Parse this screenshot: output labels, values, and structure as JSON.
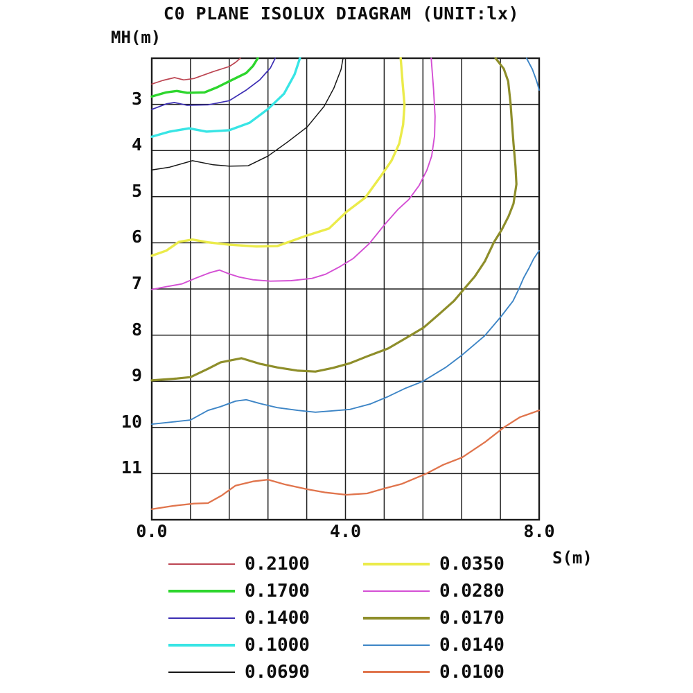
{
  "title": "C0 PLANE ISOLUX DIAGRAM (UNIT:lx)",
  "chart_data": {
    "type": "line",
    "subtype": "isolux-contour-diagram",
    "grid": true,
    "legend_position": "bottom-two-columns",
    "x_axis": {
      "label": "S(m)",
      "min": 0,
      "max": 8,
      "grid_step": 0.8,
      "ticks": [
        {
          "value": 0,
          "label": "0.0"
        },
        {
          "value": 4,
          "label": "4.0"
        },
        {
          "value": 8,
          "label": "8.0"
        }
      ]
    },
    "y_axis": {
      "label": "MH(m)",
      "min": 2,
      "max": 12,
      "grid_step": 1,
      "direction": "down",
      "ticks": [
        {
          "value": 3,
          "label": "3"
        },
        {
          "value": 4,
          "label": "4"
        },
        {
          "value": 5,
          "label": "5"
        },
        {
          "value": 6,
          "label": "6"
        },
        {
          "value": 7,
          "label": "7"
        },
        {
          "value": 8,
          "label": "8"
        },
        {
          "value": 9,
          "label": "9"
        },
        {
          "value": 10,
          "label": "10"
        },
        {
          "value": 11,
          "label": "11"
        }
      ]
    },
    "series": [
      {
        "label": "0.2100",
        "level": 0.21,
        "color": "#bc4552",
        "width": 1.7,
        "legend_thickness": 2,
        "paths": [
          [
            [
              0,
              2.56
            ],
            [
              0.23,
              2.48
            ],
            [
              0.47,
              2.42
            ],
            [
              0.66,
              2.47
            ],
            [
              0.87,
              2.44
            ],
            [
              1.27,
              2.29
            ],
            [
              1.6,
              2.18
            ],
            [
              1.73,
              2.09
            ],
            [
              1.83,
              2.0
            ]
          ]
        ]
      },
      {
        "label": "0.1700",
        "level": 0.17,
        "color": "#2dd62d",
        "width": 3.4,
        "legend_thickness": 4,
        "paths": [
          [
            [
              0,
              2.83
            ],
            [
              0.3,
              2.74
            ],
            [
              0.52,
              2.71
            ],
            [
              0.73,
              2.75
            ],
            [
              1.09,
              2.74
            ],
            [
              1.35,
              2.63
            ],
            [
              1.6,
              2.5
            ],
            [
              1.95,
              2.32
            ],
            [
              2.09,
              2.17
            ],
            [
              2.19,
              2.0
            ]
          ]
        ]
      },
      {
        "label": "0.1400",
        "level": 0.14,
        "color": "#3b2db3",
        "width": 1.7,
        "legend_thickness": 2,
        "paths": [
          [
            [
              0,
              3.11
            ],
            [
              0.3,
              2.99
            ],
            [
              0.47,
              2.96
            ],
            [
              0.73,
              3.02
            ],
            [
              1.16,
              3.01
            ],
            [
              1.6,
              2.92
            ],
            [
              1.95,
              2.69
            ],
            [
              2.23,
              2.47
            ],
            [
              2.45,
              2.21
            ],
            [
              2.55,
              2.0
            ]
          ]
        ]
      },
      {
        "label": "0.1000",
        "level": 0.1,
        "color": "#38e5e5",
        "width": 3.4,
        "legend_thickness": 4,
        "paths": [
          [
            [
              0,
              3.7
            ],
            [
              0.37,
              3.59
            ],
            [
              0.77,
              3.52
            ],
            [
              1.13,
              3.59
            ],
            [
              1.6,
              3.56
            ],
            [
              2.02,
              3.4
            ],
            [
              2.4,
              3.1
            ],
            [
              2.73,
              2.77
            ],
            [
              2.95,
              2.35
            ],
            [
              3.06,
              2.0
            ]
          ]
        ]
      },
      {
        "label": "0.0690",
        "level": 0.069,
        "color": "#161616",
        "width": 1.5,
        "legend_thickness": 2,
        "paths": [
          [
            [
              0,
              4.42
            ],
            [
              0.37,
              4.36
            ],
            [
              0.84,
              4.22
            ],
            [
              1.27,
              4.31
            ],
            [
              1.6,
              4.34
            ],
            [
              1.99,
              4.33
            ],
            [
              2.4,
              4.12
            ],
            [
              2.8,
              3.82
            ],
            [
              3.21,
              3.49
            ],
            [
              3.56,
              3.04
            ],
            [
              3.76,
              2.65
            ],
            [
              3.91,
              2.24
            ],
            [
              3.95,
              2.0
            ]
          ]
        ]
      },
      {
        "label": "0.0350",
        "level": 0.035,
        "color": "#ebeb4a",
        "width": 3.4,
        "legend_thickness": 4,
        "paths": [
          [
            [
              0,
              6.28
            ],
            [
              0.3,
              6.17
            ],
            [
              0.56,
              5.98
            ],
            [
              0.84,
              5.93
            ],
            [
              1.16,
              5.99
            ],
            [
              1.6,
              6.04
            ],
            [
              2.16,
              6.08
            ],
            [
              2.59,
              6.07
            ],
            [
              3.21,
              5.84
            ],
            [
              3.66,
              5.69
            ],
            [
              4.02,
              5.33
            ],
            [
              4.41,
              5.02
            ],
            [
              4.74,
              4.54
            ],
            [
              4.95,
              4.22
            ],
            [
              5.11,
              3.85
            ],
            [
              5.19,
              3.44
            ],
            [
              5.22,
              3.01
            ],
            [
              5.18,
              2.54
            ],
            [
              5.14,
              2.0
            ]
          ]
        ]
      },
      {
        "label": "0.0280",
        "level": 0.028,
        "color": "#d44fd4",
        "width": 1.9,
        "legend_thickness": 2,
        "paths": [
          [
            [
              0,
              7.01
            ],
            [
              0.3,
              6.95
            ],
            [
              0.62,
              6.89
            ],
            [
              0.92,
              6.76
            ],
            [
              1.19,
              6.65
            ],
            [
              1.4,
              6.59
            ],
            [
              1.59,
              6.67
            ],
            [
              1.8,
              6.74
            ],
            [
              2.09,
              6.8
            ],
            [
              2.45,
              6.83
            ],
            [
              2.88,
              6.82
            ],
            [
              3.31,
              6.77
            ],
            [
              3.59,
              6.68
            ],
            [
              3.88,
              6.52
            ],
            [
              4.16,
              6.34
            ],
            [
              4.49,
              6.02
            ],
            [
              4.82,
              5.59
            ],
            [
              5.09,
              5.27
            ],
            [
              5.31,
              5.06
            ],
            [
              5.52,
              4.76
            ],
            [
              5.68,
              4.43
            ],
            [
              5.78,
              4.12
            ],
            [
              5.84,
              3.68
            ],
            [
              5.85,
              3.26
            ],
            [
              5.82,
              2.69
            ],
            [
              5.77,
              2.0
            ]
          ]
        ]
      },
      {
        "label": "0.0170",
        "level": 0.017,
        "color": "#8e8e2a",
        "width": 3.2,
        "legend_thickness": 4,
        "paths": [
          [
            [
              0,
              8.98
            ],
            [
              0.52,
              8.94
            ],
            [
              0.8,
              8.91
            ],
            [
              1.16,
              8.73
            ],
            [
              1.42,
              8.59
            ],
            [
              1.85,
              8.5
            ],
            [
              2.23,
              8.62
            ],
            [
              2.59,
              8.7
            ],
            [
              3.02,
              8.77
            ],
            [
              3.38,
              8.79
            ],
            [
              3.74,
              8.71
            ],
            [
              4.09,
              8.61
            ],
            [
              4.45,
              8.46
            ],
            [
              4.88,
              8.29
            ],
            [
              5.24,
              8.07
            ],
            [
              5.61,
              7.84
            ],
            [
              5.95,
              7.53
            ],
            [
              6.24,
              7.26
            ],
            [
              6.45,
              7.0
            ],
            [
              6.67,
              6.73
            ],
            [
              6.88,
              6.4
            ],
            [
              7.07,
              5.98
            ],
            [
              7.23,
              5.71
            ],
            [
              7.37,
              5.42
            ],
            [
              7.47,
              5.15
            ],
            [
              7.53,
              4.73
            ],
            [
              7.51,
              4.34
            ],
            [
              7.47,
              3.85
            ],
            [
              7.43,
              3.29
            ],
            [
              7.41,
              2.99
            ],
            [
              7.36,
              2.5
            ],
            [
              7.27,
              2.23
            ],
            [
              7.1,
              2.0
            ]
          ]
        ]
      },
      {
        "label": "0.0140",
        "level": 0.014,
        "color": "#3d85c6",
        "width": 1.9,
        "legend_thickness": 2,
        "paths": [
          [
            [
              0,
              9.93
            ],
            [
              0.44,
              9.88
            ],
            [
              0.8,
              9.84
            ],
            [
              1.16,
              9.63
            ],
            [
              1.42,
              9.55
            ],
            [
              1.73,
              9.43
            ],
            [
              1.95,
              9.4
            ],
            [
              2.23,
              9.48
            ],
            [
              2.59,
              9.57
            ],
            [
              3.02,
              9.63
            ],
            [
              3.38,
              9.67
            ],
            [
              3.74,
              9.64
            ],
            [
              4.09,
              9.61
            ],
            [
              4.52,
              9.49
            ],
            [
              4.88,
              9.33
            ],
            [
              5.24,
              9.15
            ],
            [
              5.6,
              9.0
            ],
            [
              6.07,
              8.7
            ],
            [
              6.41,
              8.43
            ],
            [
              6.88,
              8.01
            ],
            [
              7.21,
              7.6
            ],
            [
              7.46,
              7.26
            ],
            [
              7.58,
              7.0
            ],
            [
              7.68,
              6.76
            ],
            [
              7.79,
              6.55
            ],
            [
              7.89,
              6.34
            ],
            [
              8.0,
              6.17
            ]
          ],
          [
            [
              7.74,
              2.0
            ],
            [
              7.86,
              2.24
            ],
            [
              7.93,
              2.44
            ],
            [
              7.97,
              2.57
            ],
            [
              8.0,
              2.69
            ]
          ]
        ]
      },
      {
        "label": "0.0100",
        "level": 0.01,
        "color": "#e0744c",
        "width": 2.3,
        "legend_thickness": 3,
        "paths": [
          [
            [
              0,
              11.77
            ],
            [
              0.44,
              11.7
            ],
            [
              0.87,
              11.65
            ],
            [
              1.16,
              11.64
            ],
            [
              1.45,
              11.47
            ],
            [
              1.73,
              11.26
            ],
            [
              2.09,
              11.17
            ],
            [
              2.4,
              11.13
            ],
            [
              2.73,
              11.23
            ],
            [
              3.21,
              11.34
            ],
            [
              3.59,
              11.41
            ],
            [
              4.02,
              11.46
            ],
            [
              4.45,
              11.43
            ],
            [
              4.81,
              11.32
            ],
            [
              5.17,
              11.22
            ],
            [
              5.67,
              11.0
            ],
            [
              6.02,
              10.81
            ],
            [
              6.41,
              10.65
            ],
            [
              6.88,
              10.32
            ],
            [
              7.27,
              10.0
            ],
            [
              7.6,
              9.78
            ],
            [
              8.0,
              9.63
            ]
          ]
        ]
      }
    ]
  }
}
